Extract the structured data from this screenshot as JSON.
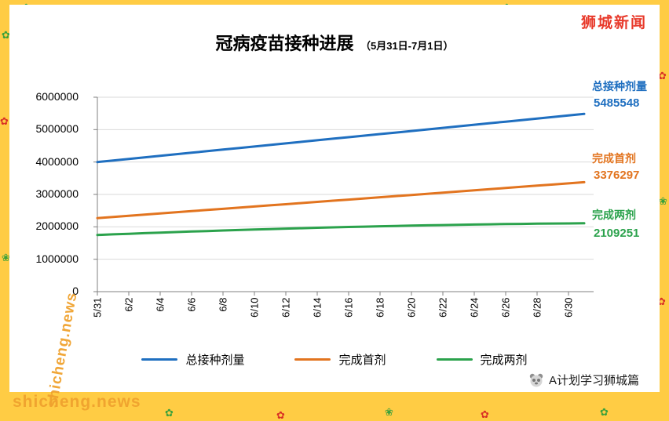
{
  "brand": {
    "label": "狮城新闻"
  },
  "watermark": {
    "text": "shicheng.news",
    "text2": "shicheng.news"
  },
  "footer": {
    "credit": "A计划学习狮城篇"
  },
  "decor": {
    "flower": "✿",
    "sparkle": "❀",
    "square": "■"
  },
  "chart_data": {
    "type": "line",
    "title": "冠病疫苗接种进展",
    "subtitle": "（5月31日-7月1日）",
    "x_labels": [
      "5/31",
      "6/2",
      "6/4",
      "6/6",
      "6/8",
      "6/10",
      "6/12",
      "6/14",
      "6/16",
      "6/18",
      "6/20",
      "6/22",
      "6/24",
      "6/26",
      "6/28",
      "6/30"
    ],
    "x_points": 32,
    "ylim": [
      0,
      6000000
    ],
    "y_ticks": [
      0,
      1000000,
      2000000,
      3000000,
      4000000,
      5000000,
      6000000
    ],
    "grid": true,
    "legend_position": "bottom",
    "series": [
      {
        "name": "总接种剂量",
        "color": "#1F6FC0",
        "final_value": 5485548,
        "values": [
          4000000,
          4048000,
          4096000,
          4144000,
          4192000,
          4240000,
          4288000,
          4335000,
          4383000,
          4431000,
          4479000,
          4527000,
          4575000,
          4623000,
          4671000,
          4719000,
          4767000,
          4815000,
          4862000,
          4910000,
          4958000,
          5006000,
          5054000,
          5102000,
          5150000,
          5198000,
          5246000,
          5293000,
          5341000,
          5389000,
          5437000,
          5485548
        ]
      },
      {
        "name": "完成首剂",
        "color": "#E2741F",
        "final_value": 3376297,
        "values": [
          2270000,
          2305000,
          2341000,
          2377000,
          2413000,
          2448000,
          2484000,
          2520000,
          2556000,
          2591000,
          2627000,
          2663000,
          2698000,
          2734000,
          2770000,
          2806000,
          2841000,
          2877000,
          2913000,
          2948000,
          2984000,
          3020000,
          3055000,
          3091000,
          3127000,
          3162000,
          3198000,
          3234000,
          3270000,
          3305000,
          3341000,
          3376297
        ]
      },
      {
        "name": "完成两剂",
        "color": "#2BA24C",
        "final_value": 2109251,
        "values": [
          1750000,
          1768000,
          1786000,
          1804000,
          1821000,
          1838000,
          1855000,
          1871000,
          1887000,
          1902000,
          1917000,
          1931000,
          1945000,
          1958000,
          1971000,
          1983000,
          1995000,
          2006000,
          2017000,
          2027000,
          2037000,
          2046000,
          2055000,
          2063000,
          2071000,
          2078000,
          2085000,
          2091000,
          2097000,
          2102000,
          2106000,
          2109251
        ]
      }
    ]
  }
}
